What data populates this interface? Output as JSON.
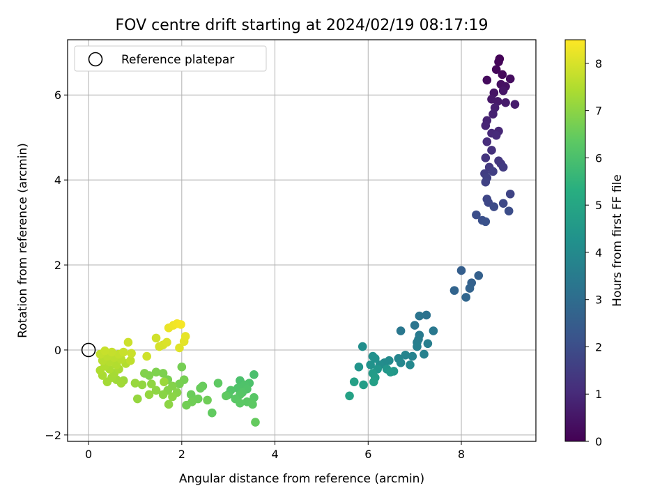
{
  "chart_data": {
    "type": "scatter",
    "title": "FOV centre drift starting at 2024/02/19 08:17:19",
    "xlabel": "Angular distance from reference (arcmin)",
    "ylabel": "Rotation from reference (arcmin)",
    "xlim": [
      -0.45,
      9.6
    ],
    "ylim": [
      -2.15,
      7.3
    ],
    "xticks": [
      0,
      2,
      4,
      6,
      8
    ],
    "yticks": [
      -2,
      0,
      2,
      4,
      6
    ],
    "grid": true,
    "legend": {
      "placement": "upper-left",
      "entries": [
        "Reference platepar"
      ]
    },
    "reference_point": {
      "x": 0,
      "y": 0
    },
    "colorbar": {
      "label": "Hours from first FF file",
      "range": [
        0,
        8.5
      ],
      "ticks": [
        0,
        1,
        2,
        3,
        4,
        5,
        6,
        7,
        8
      ],
      "colormap": "viridis"
    },
    "points": [
      {
        "x": 8.82,
        "y": 6.85,
        "c": 0.05
      },
      {
        "x": 8.8,
        "y": 6.78,
        "c": 0.1
      },
      {
        "x": 8.75,
        "y": 6.6,
        "c": 0.15
      },
      {
        "x": 8.88,
        "y": 6.48,
        "c": 0.2
      },
      {
        "x": 8.55,
        "y": 6.35,
        "c": 0.25
      },
      {
        "x": 9.05,
        "y": 6.38,
        "c": 0.3
      },
      {
        "x": 8.85,
        "y": 6.25,
        "c": 0.35
      },
      {
        "x": 8.95,
        "y": 6.2,
        "c": 0.4
      },
      {
        "x": 8.7,
        "y": 6.05,
        "c": 0.45
      },
      {
        "x": 8.9,
        "y": 6.1,
        "c": 0.5
      },
      {
        "x": 8.65,
        "y": 5.9,
        "c": 0.55
      },
      {
        "x": 8.78,
        "y": 5.85,
        "c": 0.6
      },
      {
        "x": 8.95,
        "y": 5.82,
        "c": 0.65
      },
      {
        "x": 9.15,
        "y": 5.78,
        "c": 0.7
      },
      {
        "x": 8.72,
        "y": 5.7,
        "c": 0.75
      },
      {
        "x": 8.68,
        "y": 5.55,
        "c": 0.8
      },
      {
        "x": 8.55,
        "y": 5.4,
        "c": 0.85
      },
      {
        "x": 8.52,
        "y": 5.28,
        "c": 0.9
      },
      {
        "x": 8.8,
        "y": 5.15,
        "c": 0.95
      },
      {
        "x": 8.65,
        "y": 5.1,
        "c": 1.0
      },
      {
        "x": 8.75,
        "y": 5.05,
        "c": 1.05
      },
      {
        "x": 8.55,
        "y": 4.9,
        "c": 1.1
      },
      {
        "x": 8.65,
        "y": 4.7,
        "c": 1.2
      },
      {
        "x": 8.52,
        "y": 4.52,
        "c": 1.3
      },
      {
        "x": 8.8,
        "y": 4.45,
        "c": 1.35
      },
      {
        "x": 8.85,
        "y": 4.38,
        "c": 1.4
      },
      {
        "x": 8.6,
        "y": 4.3,
        "c": 1.45
      },
      {
        "x": 8.9,
        "y": 4.3,
        "c": 1.5
      },
      {
        "x": 8.5,
        "y": 4.15,
        "c": 1.55
      },
      {
        "x": 8.68,
        "y": 4.2,
        "c": 1.6
      },
      {
        "x": 8.55,
        "y": 4.05,
        "c": 1.65
      },
      {
        "x": 8.52,
        "y": 3.95,
        "c": 1.7
      },
      {
        "x": 9.05,
        "y": 3.67,
        "c": 1.75
      },
      {
        "x": 8.55,
        "y": 3.55,
        "c": 1.8
      },
      {
        "x": 8.58,
        "y": 3.47,
        "c": 1.85
      },
      {
        "x": 8.9,
        "y": 3.45,
        "c": 1.9
      },
      {
        "x": 8.7,
        "y": 3.37,
        "c": 1.95
      },
      {
        "x": 9.02,
        "y": 3.27,
        "c": 2.0
      },
      {
        "x": 8.32,
        "y": 3.18,
        "c": 2.05
      },
      {
        "x": 8.45,
        "y": 3.05,
        "c": 2.1
      },
      {
        "x": 8.52,
        "y": 3.02,
        "c": 2.15
      },
      {
        "x": 8.0,
        "y": 1.87,
        "c": 2.55
      },
      {
        "x": 8.37,
        "y": 1.75,
        "c": 2.6
      },
      {
        "x": 8.22,
        "y": 1.58,
        "c": 2.65
      },
      {
        "x": 8.18,
        "y": 1.45,
        "c": 2.7
      },
      {
        "x": 7.85,
        "y": 1.4,
        "c": 2.75
      },
      {
        "x": 8.1,
        "y": 1.24,
        "c": 2.8
      },
      {
        "x": 7.25,
        "y": 0.82,
        "c": 3.2
      },
      {
        "x": 7.1,
        "y": 0.8,
        "c": 3.25
      },
      {
        "x": 7.0,
        "y": 0.58,
        "c": 3.3
      },
      {
        "x": 6.7,
        "y": 0.45,
        "c": 3.35
      },
      {
        "x": 7.4,
        "y": 0.45,
        "c": 3.4
      },
      {
        "x": 7.1,
        "y": 0.35,
        "c": 3.45
      },
      {
        "x": 7.08,
        "y": 0.25,
        "c": 3.5
      },
      {
        "x": 7.05,
        "y": 0.18,
        "c": 3.55
      },
      {
        "x": 7.28,
        "y": 0.15,
        "c": 3.6
      },
      {
        "x": 7.05,
        "y": 0.08,
        "c": 3.65
      },
      {
        "x": 7.2,
        "y": -0.1,
        "c": 3.7
      },
      {
        "x": 6.95,
        "y": -0.15,
        "c": 3.75
      },
      {
        "x": 6.8,
        "y": -0.12,
        "c": 3.8
      },
      {
        "x": 6.65,
        "y": -0.2,
        "c": 3.85
      },
      {
        "x": 6.7,
        "y": -0.3,
        "c": 3.9
      },
      {
        "x": 6.9,
        "y": -0.35,
        "c": 3.95
      },
      {
        "x": 6.45,
        "y": -0.25,
        "c": 4.0
      },
      {
        "x": 6.35,
        "y": -0.3,
        "c": 4.05
      },
      {
        "x": 6.25,
        "y": -0.35,
        "c": 4.1
      },
      {
        "x": 5.88,
        "y": 0.08,
        "c": 4.15
      },
      {
        "x": 6.1,
        "y": -0.15,
        "c": 4.2
      },
      {
        "x": 6.15,
        "y": -0.2,
        "c": 4.25
      },
      {
        "x": 6.05,
        "y": -0.35,
        "c": 4.3
      },
      {
        "x": 5.8,
        "y": -0.4,
        "c": 4.35
      },
      {
        "x": 6.2,
        "y": -0.45,
        "c": 4.4
      },
      {
        "x": 6.4,
        "y": -0.45,
        "c": 4.45
      },
      {
        "x": 6.55,
        "y": -0.5,
        "c": 4.5
      },
      {
        "x": 6.48,
        "y": -0.52,
        "c": 4.55
      },
      {
        "x": 6.1,
        "y": -0.55,
        "c": 4.6
      },
      {
        "x": 6.15,
        "y": -0.65,
        "c": 4.65
      },
      {
        "x": 5.9,
        "y": -0.82,
        "c": 4.7
      },
      {
        "x": 6.12,
        "y": -0.75,
        "c": 4.75
      },
      {
        "x": 5.7,
        "y": -0.75,
        "c": 4.8
      },
      {
        "x": 5.6,
        "y": -1.08,
        "c": 4.85
      },
      {
        "x": 3.55,
        "y": -0.58,
        "c": 6.0
      },
      {
        "x": 3.25,
        "y": -0.72,
        "c": 6.02
      },
      {
        "x": 3.45,
        "y": -0.78,
        "c": 6.05
      },
      {
        "x": 3.35,
        "y": -0.82,
        "c": 6.08
      },
      {
        "x": 3.2,
        "y": -0.9,
        "c": 6.1
      },
      {
        "x": 3.4,
        "y": -0.92,
        "c": 6.12
      },
      {
        "x": 3.05,
        "y": -0.95,
        "c": 6.15
      },
      {
        "x": 3.3,
        "y": -1.0,
        "c": 6.18
      },
      {
        "x": 3.0,
        "y": -1.05,
        "c": 6.2
      },
      {
        "x": 3.25,
        "y": -1.05,
        "c": 6.22
      },
      {
        "x": 3.55,
        "y": -1.12,
        "c": 6.25
      },
      {
        "x": 3.15,
        "y": -1.15,
        "c": 6.28
      },
      {
        "x": 3.4,
        "y": -1.22,
        "c": 6.3
      },
      {
        "x": 3.25,
        "y": -1.25,
        "c": 6.32
      },
      {
        "x": 3.52,
        "y": -1.28,
        "c": 6.35
      },
      {
        "x": 2.78,
        "y": -0.78,
        "c": 6.38
      },
      {
        "x": 2.95,
        "y": -1.08,
        "c": 6.4
      },
      {
        "x": 2.65,
        "y": -1.48,
        "c": 6.42
      },
      {
        "x": 3.58,
        "y": -1.7,
        "c": 6.45
      },
      {
        "x": 2.45,
        "y": -0.85,
        "c": 6.5
      },
      {
        "x": 2.4,
        "y": -0.9,
        "c": 6.52
      },
      {
        "x": 2.2,
        "y": -1.05,
        "c": 6.55
      },
      {
        "x": 2.35,
        "y": -1.15,
        "c": 6.58
      },
      {
        "x": 2.55,
        "y": -1.18,
        "c": 6.6
      },
      {
        "x": 2.22,
        "y": -1.22,
        "c": 6.62
      },
      {
        "x": 2.1,
        "y": -1.3,
        "c": 6.65
      },
      {
        "x": 2.0,
        "y": -0.4,
        "c": 6.68
      },
      {
        "x": 2.05,
        "y": -0.7,
        "c": 6.7
      },
      {
        "x": 1.95,
        "y": -0.8,
        "c": 6.72
      },
      {
        "x": 1.7,
        "y": -0.7,
        "c": 6.75
      },
      {
        "x": 1.6,
        "y": -0.55,
        "c": 6.78
      },
      {
        "x": 1.45,
        "y": -0.52,
        "c": 6.8
      },
      {
        "x": 1.3,
        "y": -0.6,
        "c": 6.82
      },
      {
        "x": 1.2,
        "y": -0.55,
        "c": 6.85
      },
      {
        "x": 1.8,
        "y": -0.85,
        "c": 6.88
      },
      {
        "x": 1.7,
        "y": -0.95,
        "c": 6.9
      },
      {
        "x": 1.9,
        "y": -1.0,
        "c": 6.92
      },
      {
        "x": 1.6,
        "y": -1.05,
        "c": 6.95
      },
      {
        "x": 1.8,
        "y": -1.1,
        "c": 6.98
      },
      {
        "x": 1.72,
        "y": -1.28,
        "c": 7.0
      },
      {
        "x": 1.45,
        "y": -0.95,
        "c": 7.02
      },
      {
        "x": 1.35,
        "y": -0.8,
        "c": 7.05
      },
      {
        "x": 1.15,
        "y": -0.82,
        "c": 7.08
      },
      {
        "x": 1.3,
        "y": -1.05,
        "c": 7.1
      },
      {
        "x": 1.05,
        "y": -1.15,
        "c": 7.12
      },
      {
        "x": 1.0,
        "y": -0.78,
        "c": 7.15
      },
      {
        "x": 1.62,
        "y": -0.75,
        "c": 7.18
      },
      {
        "x": 0.75,
        "y": -0.72,
        "c": 7.2
      },
      {
        "x": 0.6,
        "y": -0.7,
        "c": 7.25
      },
      {
        "x": 0.7,
        "y": -0.78,
        "c": 7.28
      },
      {
        "x": 0.5,
        "y": -0.65,
        "c": 7.3
      },
      {
        "x": 0.4,
        "y": -0.75,
        "c": 7.32
      },
      {
        "x": 0.55,
        "y": -0.55,
        "c": 7.35
      },
      {
        "x": 0.3,
        "y": -0.6,
        "c": 7.38
      },
      {
        "x": 0.65,
        "y": -0.45,
        "c": 7.4
      },
      {
        "x": 0.45,
        "y": -0.45,
        "c": 7.42
      },
      {
        "x": 0.25,
        "y": -0.48,
        "c": 7.45
      },
      {
        "x": 0.35,
        "y": -0.38,
        "c": 7.48
      },
      {
        "x": 0.6,
        "y": -0.35,
        "c": 7.5
      },
      {
        "x": 0.8,
        "y": -0.32,
        "c": 7.52
      },
      {
        "x": 0.45,
        "y": -0.28,
        "c": 7.55
      },
      {
        "x": 0.3,
        "y": -0.25,
        "c": 7.58
      },
      {
        "x": 0.7,
        "y": -0.22,
        "c": 7.6
      },
      {
        "x": 0.55,
        "y": -0.18,
        "c": 7.62
      },
      {
        "x": 0.4,
        "y": -0.15,
        "c": 7.65
      },
      {
        "x": 0.9,
        "y": -0.25,
        "c": 7.68
      },
      {
        "x": 0.65,
        "y": -0.1,
        "c": 7.7
      },
      {
        "x": 0.25,
        "y": -0.1,
        "c": 7.72
      },
      {
        "x": 0.5,
        "y": -0.05,
        "c": 7.75
      },
      {
        "x": 0.35,
        "y": -0.02,
        "c": 7.78
      },
      {
        "x": 0.75,
        "y": -0.05,
        "c": 7.8
      },
      {
        "x": 0.92,
        "y": -0.08,
        "c": 7.82
      },
      {
        "x": 0.85,
        "y": 0.18,
        "c": 7.85
      },
      {
        "x": 1.25,
        "y": -0.15,
        "c": 7.88
      },
      {
        "x": 1.45,
        "y": 0.28,
        "c": 7.9
      },
      {
        "x": 1.52,
        "y": 0.08,
        "c": 7.95
      },
      {
        "x": 1.6,
        "y": 0.12,
        "c": 8.0
      },
      {
        "x": 1.68,
        "y": 0.18,
        "c": 8.05
      },
      {
        "x": 1.95,
        "y": 0.05,
        "c": 8.1
      },
      {
        "x": 2.05,
        "y": 0.2,
        "c": 8.15
      },
      {
        "x": 2.08,
        "y": 0.32,
        "c": 8.2
      },
      {
        "x": 1.72,
        "y": 0.52,
        "c": 8.25
      },
      {
        "x": 1.82,
        "y": 0.58,
        "c": 8.3
      },
      {
        "x": 1.9,
        "y": 0.62,
        "c": 8.35
      },
      {
        "x": 1.98,
        "y": 0.6,
        "c": 8.4
      }
    ]
  }
}
